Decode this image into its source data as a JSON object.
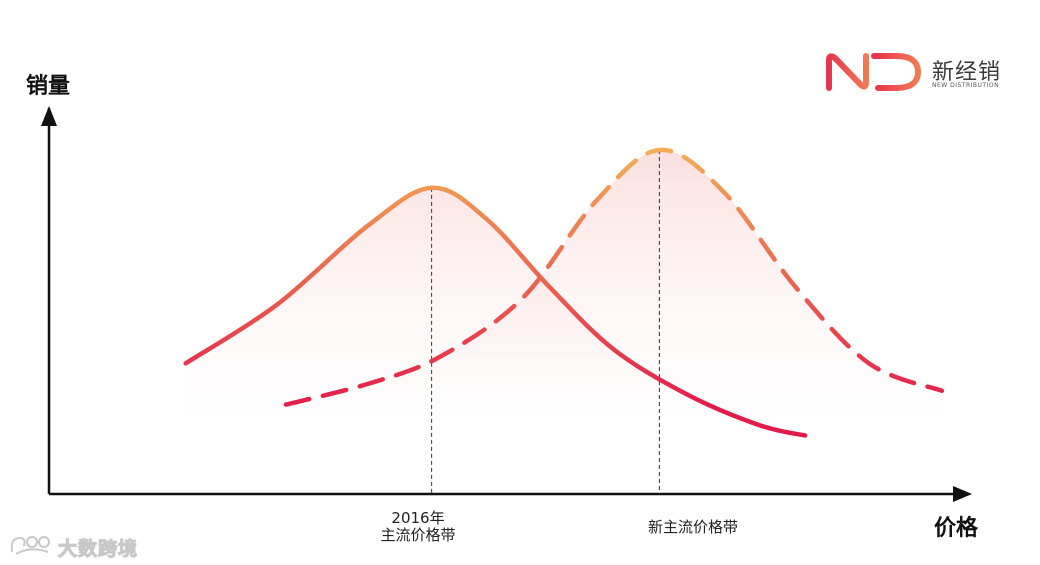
{
  "chart_data": {
    "type": "line",
    "xlabel": "价格",
    "ylabel": "销量",
    "grid": false,
    "legend": "none",
    "x_axis_markers": [
      {
        "id": "old",
        "lines": [
          "2016年",
          "主流价格带"
        ]
      },
      {
        "id": "new",
        "lines": [
          "新主流价格带"
        ]
      }
    ],
    "series": [
      {
        "style": "solid",
        "description_free": true,
        "points": [
          [
            0.15,
            0.38
          ],
          [
            0.25,
            0.55
          ],
          [
            0.35,
            0.78
          ],
          [
            0.42,
            0.89
          ],
          [
            0.48,
            0.8
          ],
          [
            0.55,
            0.6
          ],
          [
            0.62,
            0.42
          ],
          [
            0.7,
            0.29
          ],
          [
            0.78,
            0.2
          ],
          [
            0.83,
            0.17
          ]
        ],
        "peak_x": 0.42
      },
      {
        "style": "dashed",
        "points": [
          [
            0.26,
            0.26
          ],
          [
            0.35,
            0.32
          ],
          [
            0.43,
            0.4
          ],
          [
            0.52,
            0.57
          ],
          [
            0.6,
            0.85
          ],
          [
            0.67,
            1.0
          ],
          [
            0.74,
            0.88
          ],
          [
            0.82,
            0.6
          ],
          [
            0.9,
            0.38
          ],
          [
            0.98,
            0.3
          ]
        ],
        "peak_x": 0.67
      }
    ],
    "colors": {
      "gradient_top": "#f3ad55",
      "gradient_bottom": "#e21b4b",
      "fill": "#f6c9c9",
      "axis": "#111111"
    }
  },
  "brand": {
    "name": "新经销",
    "sub": "NEW DISTRIBUTION"
  },
  "watermark": {
    "text": "大数跨境"
  }
}
